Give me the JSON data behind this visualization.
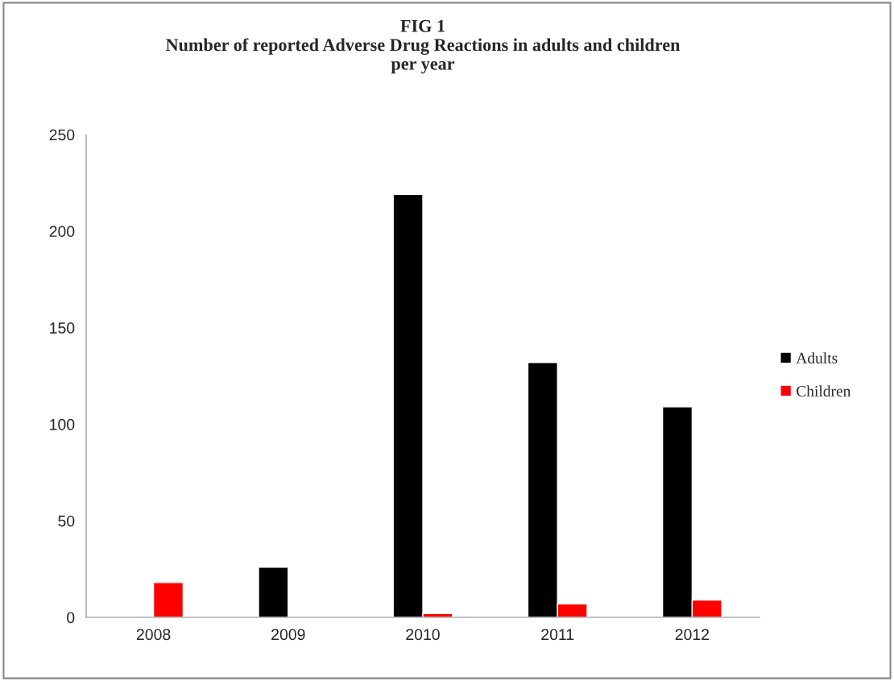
{
  "chart_data": {
    "type": "bar",
    "title": "FIG 1\nNumber of reported Adverse Drug Reactions in adults and children\nper year",
    "categories": [
      "2008",
      "2009",
      "2010",
      "2011",
      "2012"
    ],
    "series": [
      {
        "name": "Adults",
        "color": "#000000",
        "values": [
          null,
          26,
          219,
          132,
          109
        ]
      },
      {
        "name": "Children",
        "color": "#ff0000",
        "values": [
          18,
          null,
          2,
          7,
          9
        ]
      }
    ],
    "ylim": [
      0,
      250
    ],
    "yticks": [
      0,
      50,
      100,
      150,
      200,
      250
    ],
    "grid": false,
    "legend": "right"
  }
}
